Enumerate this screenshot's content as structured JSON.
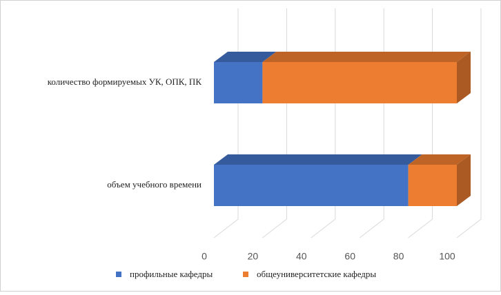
{
  "chart_data": {
    "type": "bar3d_stacked_horizontal",
    "categories": [
      "количество формируемых УК, ОПК, ПК",
      "объем учебного времени"
    ],
    "series": [
      {
        "name": "профильные кафедры",
        "color": "#4472c4",
        "values": [
          20,
          80
        ]
      },
      {
        "name": "общеуниверситетские кафедры",
        "color": "#ed7d31",
        "values": [
          80,
          20
        ]
      }
    ],
    "xlim": [
      0,
      100
    ],
    "xticks": [
      0,
      20,
      40,
      60,
      80,
      100
    ],
    "grid": true,
    "legend": "bottom"
  }
}
